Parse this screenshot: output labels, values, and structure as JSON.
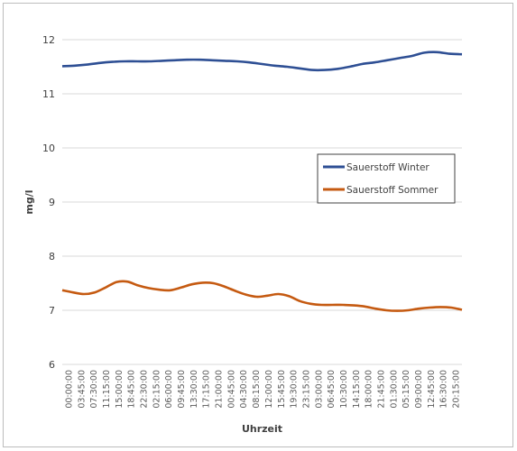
{
  "chart_data": {
    "type": "line",
    "title": "",
    "xlabel": "Uhrzeit",
    "ylabel": "mg/l",
    "ylim": [
      6,
      12
    ],
    "yticks": [
      "6",
      "7",
      "8",
      "9",
      "10",
      "11",
      "12"
    ],
    "grid": true,
    "legend_position": "right-middle",
    "x_tick_labels": [
      "00:00:00",
      "03:45:00",
      "07:30:00",
      "11:15:00",
      "15:00:00",
      "18:45:00",
      "22:30:00",
      "02:15:00",
      "06:00:00",
      "09:45:00",
      "13:30:00",
      "17:15:00",
      "21:00:00",
      "00:45:00",
      "04:30:00",
      "08:15:00",
      "12:00:00",
      "15:45:00",
      "19:30:00",
      "23:15:00",
      "03:00:00",
      "06:45:00",
      "10:30:00",
      "14:15:00",
      "18:00:00",
      "21:45:00",
      "01:30:00",
      "05:15:00",
      "09:00:00",
      "12:45:00",
      "16:30:00",
      "20:15:00"
    ],
    "series": [
      {
        "name": "Sauerstoff Winter",
        "color": "#2e4f94",
        "values": [
          11.51,
          11.52,
          11.54,
          11.57,
          11.59,
          11.6,
          11.6,
          11.6,
          11.61,
          11.62,
          11.63,
          11.63,
          11.62,
          11.61,
          11.6,
          11.58,
          11.55,
          11.52,
          11.5,
          11.47,
          11.44,
          11.44,
          11.46,
          11.5,
          11.55,
          11.58,
          11.62,
          11.66,
          11.7,
          11.76,
          11.77,
          11.74,
          11.73
        ]
      },
      {
        "name": "Sauerstoff Sommer",
        "color": "#c55a11",
        "values": [
          7.37,
          7.33,
          7.3,
          7.33,
          7.42,
          7.52,
          7.53,
          7.46,
          7.41,
          7.38,
          7.37,
          7.42,
          7.48,
          7.51,
          7.5,
          7.44,
          7.36,
          7.29,
          7.25,
          7.27,
          7.3,
          7.26,
          7.17,
          7.12,
          7.1,
          7.1,
          7.1,
          7.09,
          7.07,
          7.03,
          7.0,
          6.99,
          7.0,
          7.03,
          7.05,
          7.06,
          7.05,
          7.01
        ]
      }
    ]
  }
}
